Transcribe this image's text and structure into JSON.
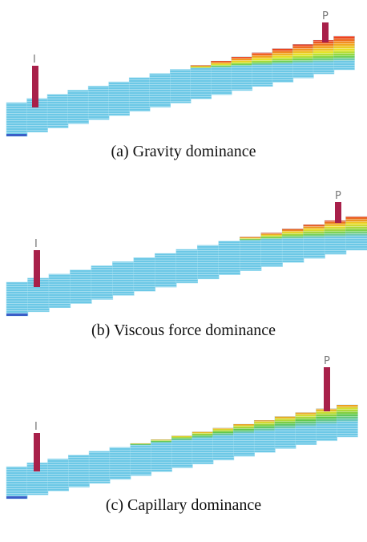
{
  "panels": [
    {
      "caption": "(a) Gravity dominance",
      "injector_label": "I",
      "producer_label": "P"
    },
    {
      "caption": "(b) Viscous force dominance",
      "injector_label": "I",
      "producer_label": "P"
    },
    {
      "caption": "(c) Capillary dominance",
      "injector_label": "I",
      "producer_label": "P"
    }
  ]
}
